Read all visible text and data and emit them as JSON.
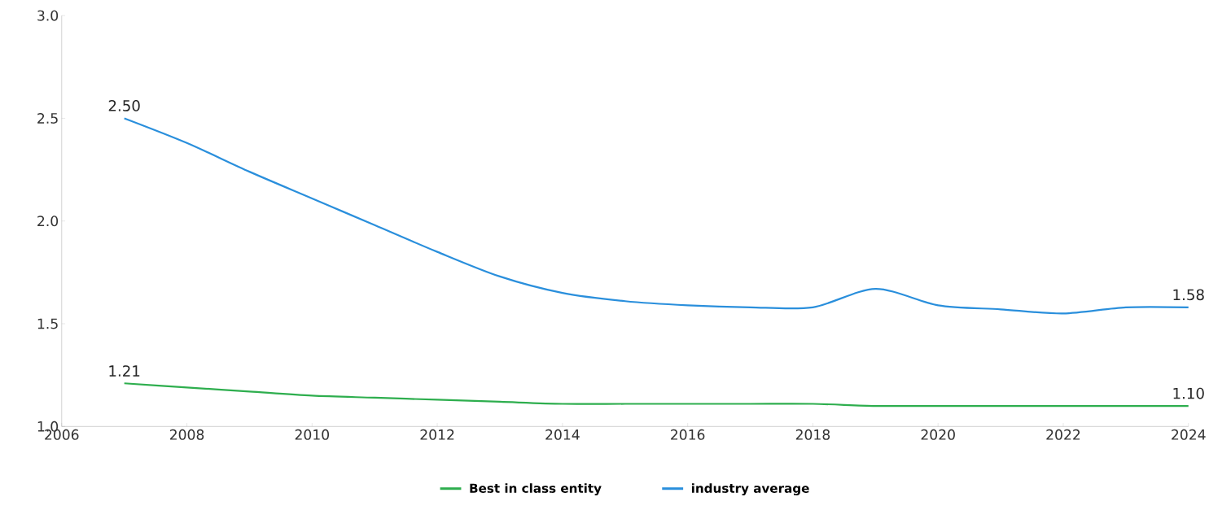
{
  "chart_data": {
    "type": "line",
    "x": [
      2007,
      2008,
      2009,
      2010,
      2011,
      2012,
      2013,
      2014,
      2015,
      2016,
      2017,
      2018,
      2019,
      2020,
      2021,
      2022,
      2023,
      2024
    ],
    "series": [
      {
        "name": "Best in class entity",
        "color": "#2eae4e",
        "values": [
          1.21,
          1.19,
          1.17,
          1.15,
          1.14,
          1.13,
          1.12,
          1.11,
          1.11,
          1.11,
          1.11,
          1.11,
          1.1,
          1.1,
          1.1,
          1.1,
          1.1,
          1.1
        ],
        "value_labels": [
          "1.21",
          null,
          null,
          null,
          null,
          null,
          null,
          null,
          null,
          null,
          null,
          null,
          null,
          null,
          null,
          null,
          null,
          "1.10"
        ]
      },
      {
        "name": "industry average",
        "color": "#2a8fdc",
        "values": [
          2.5,
          2.38,
          2.24,
          2.11,
          1.98,
          1.85,
          1.73,
          1.65,
          1.61,
          1.59,
          1.58,
          1.58,
          1.67,
          1.59,
          1.57,
          1.55,
          1.58,
          1.58
        ],
        "value_labels": [
          "2.50",
          null,
          null,
          null,
          null,
          null,
          null,
          null,
          null,
          null,
          null,
          null,
          null,
          null,
          null,
          null,
          null,
          "1.58"
        ]
      }
    ],
    "xlim": [
      2006,
      2024
    ],
    "xticks": [
      2006,
      2008,
      2010,
      2012,
      2014,
      2016,
      2018,
      2020,
      2022,
      2024
    ],
    "ylim": [
      1,
      3
    ],
    "yticks": [
      {
        "value": 1,
        "label": "1.0"
      },
      {
        "value": 1.5,
        "label": "1.5"
      },
      {
        "value": 2,
        "label": "2.0"
      },
      {
        "value": 2.5,
        "label": "2.5"
      },
      {
        "value": 3,
        "label": "3.0"
      }
    ],
    "grid": false,
    "legend": "bottom",
    "marker": "none"
  }
}
